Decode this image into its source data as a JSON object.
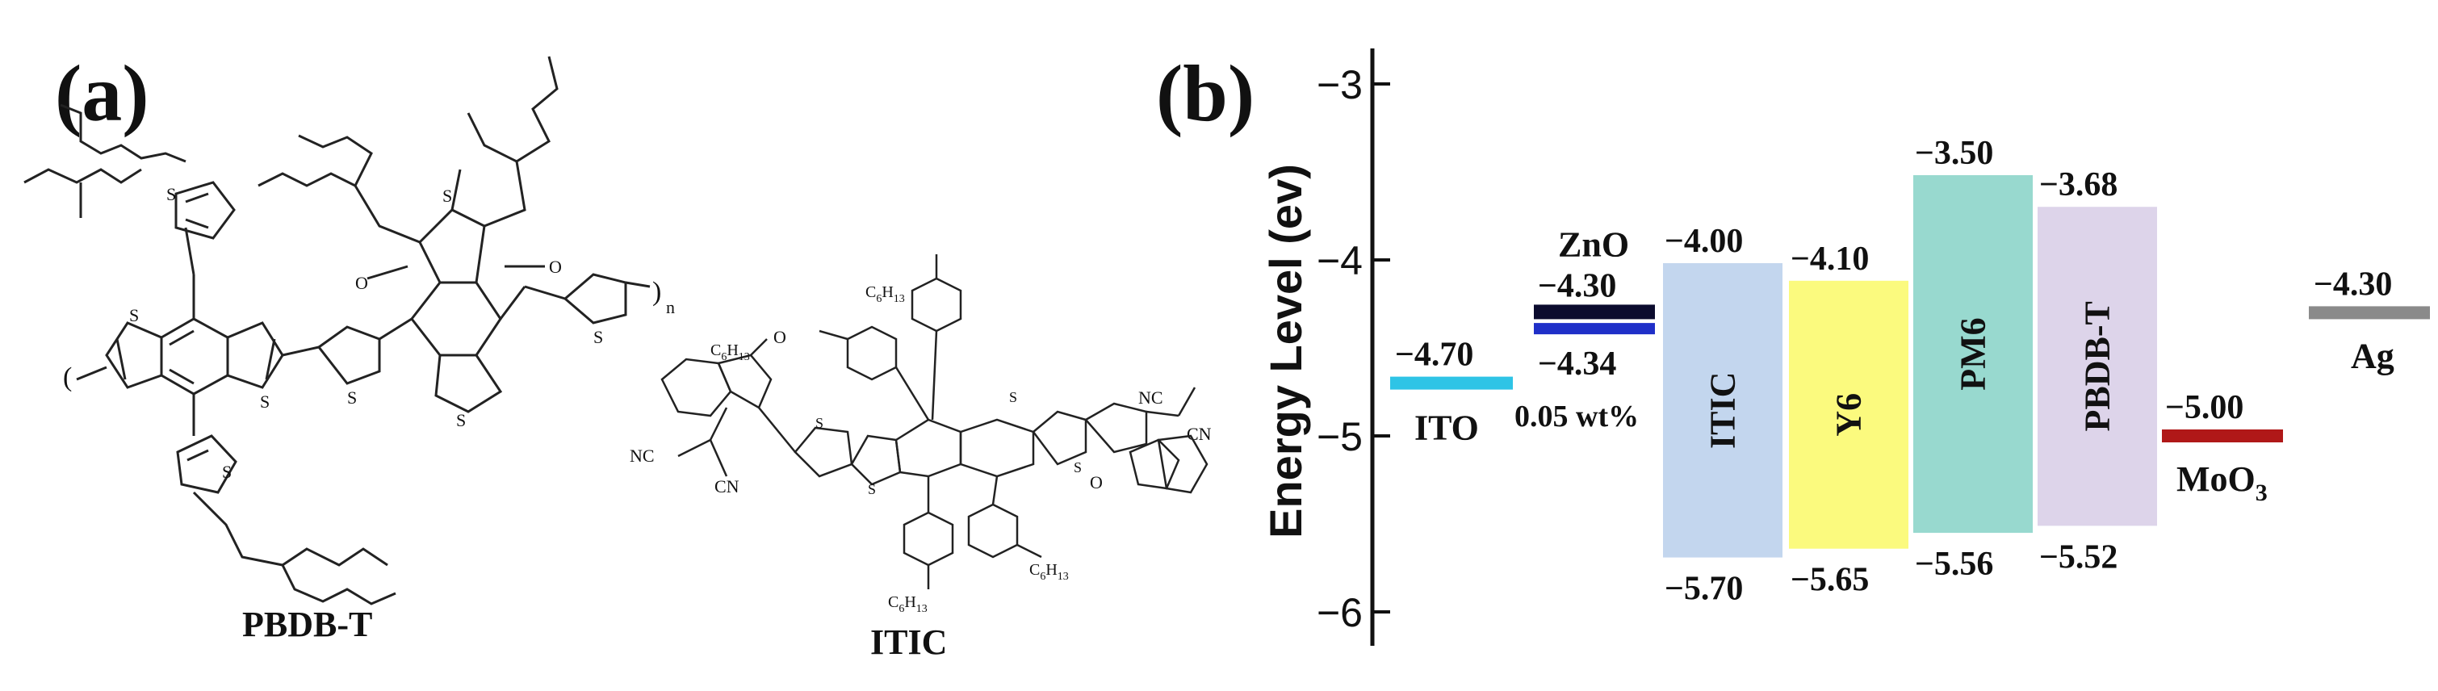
{
  "panel_a": {
    "label": "(a)",
    "molecule1_name": "PBDB-T",
    "molecule2_name": "ITIC",
    "atom_S": "S",
    "atom_O": "O",
    "atom_NC": "NC",
    "atom_CN": "CN",
    "repeat_n": "n",
    "hexyl_group": "C6H13"
  },
  "panel_b": {
    "label": "(b)",
    "y_axis_title": "Energy Level (ev)",
    "y_ticks": [
      "−3",
      "−4",
      "−5",
      "−6"
    ],
    "zno_note": "0.05 wt%"
  },
  "chart_data": {
    "type": "energy-level diagram",
    "ylabel": "Energy Level (ev)",
    "ylim": [
      -6.2,
      -2.75
    ],
    "layers": [
      {
        "name": "ITO",
        "kind": "level",
        "value": -4.7,
        "value_label": "−4.70",
        "color": "#2ec4e6"
      },
      {
        "name": "ZnO",
        "kind": "double",
        "upper": -4.3,
        "lower": -4.34,
        "upper_label": "−4.30",
        "lower_label": "−4.34",
        "note": "0.05 wt%",
        "colors": [
          "#0b0b2e",
          "#1f2fc8"
        ]
      },
      {
        "name": "ITIC",
        "kind": "band",
        "lumo": -4.0,
        "homo": -5.7,
        "lumo_label": "−4.00",
        "homo_label": "−5.70",
        "color": "#c3d6ee"
      },
      {
        "name": "Y6",
        "kind": "band",
        "lumo": -4.1,
        "homo": -5.65,
        "lumo_label": "−4.10",
        "homo_label": "−5.65",
        "color": "#fbfa7e"
      },
      {
        "name": "PM6",
        "kind": "band",
        "lumo": -3.5,
        "homo": -5.56,
        "lumo_label": "−3.50",
        "homo_label": "−5.56",
        "color": "#98d9cf"
      },
      {
        "name": "PBDB-T",
        "kind": "band",
        "lumo": -3.68,
        "homo": -5.52,
        "lumo_label": "−3.68",
        "homo_label": "−5.52",
        "color": "#ddd4ea"
      },
      {
        "name": "MoO3",
        "kind": "level",
        "value": -5.0,
        "value_label": "−5.00",
        "color": "#b01818"
      },
      {
        "name": "Ag",
        "kind": "level",
        "value": -4.3,
        "value_label": "−4.30",
        "color": "#8a8a8a"
      }
    ]
  }
}
